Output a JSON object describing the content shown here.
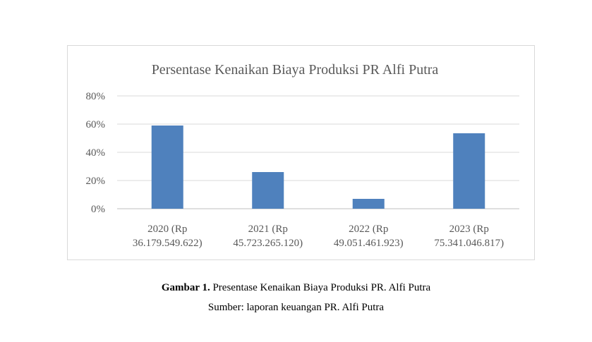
{
  "chart_data": {
    "type": "bar",
    "title": "Persentase Kenaikan Biaya Produksi PR Alfi Putra",
    "categories": [
      [
        "2020 (Rp",
        "36.179.549.622)"
      ],
      [
        "2021 (Rp",
        "45.723.265.120)"
      ],
      [
        "2022 (Rp",
        "49.051.461.923)"
      ],
      [
        "2023 (Rp",
        "75.341.046.817)"
      ]
    ],
    "values": [
      0.59,
      0.26,
      0.07,
      0.535
    ],
    "ylim": [
      0,
      0.8
    ],
    "yticks": [
      "0%",
      "20%",
      "40%",
      "60%",
      "80%"
    ],
    "grid": true,
    "bar_color": "#4f81bd",
    "xlabel": "",
    "ylabel": ""
  },
  "caption": {
    "label": "Gambar 1.",
    "text": " Presentase Kenaikan Biaya Produksi PR. Alfi Putra",
    "source": "Sumber: laporan keuangan PR. Alfi Putra"
  }
}
